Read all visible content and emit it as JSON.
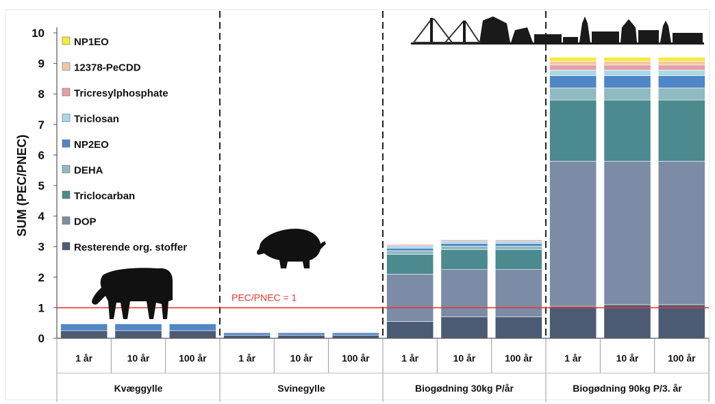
{
  "chart_data": {
    "type": "bar",
    "stacked": true,
    "ylabel": "SUM (PEC/PNEC)",
    "ylim": [
      0,
      10
    ],
    "yticks": [
      0,
      1,
      2,
      3,
      4,
      5,
      6,
      7,
      8,
      9,
      10
    ],
    "groups": [
      {
        "label": "Kvæggylle",
        "categories": [
          "1 år",
          "10 år",
          "100 år"
        ]
      },
      {
        "label": "Svinegylle",
        "categories": [
          "1 år",
          "10 år",
          "100 år"
        ]
      },
      {
        "label": "Biogødning 30kg P/år",
        "categories": [
          "1 år",
          "10 år",
          "100 år"
        ]
      },
      {
        "label": "Biogødning 90kg P/3. år",
        "categories": [
          "1 år",
          "10 år",
          "100 år"
        ]
      }
    ],
    "series": [
      {
        "name": "Resterende org. stoffer",
        "color": "#4b5b73",
        "values": [
          0.25,
          0.25,
          0.25,
          0.1,
          0.1,
          0.1,
          0.55,
          0.7,
          0.7,
          1.05,
          1.1,
          1.1
        ]
      },
      {
        "name": "DOP",
        "color": "#7d8ca6",
        "values": [
          0.0,
          0.0,
          0.0,
          0.0,
          0.0,
          0.0,
          1.55,
          1.55,
          1.55,
          4.75,
          4.7,
          4.7
        ]
      },
      {
        "name": "Triclocarban",
        "color": "#4b8a8f",
        "values": [
          0.0,
          0.0,
          0.0,
          0.0,
          0.0,
          0.0,
          0.65,
          0.65,
          0.65,
          2.0,
          2.0,
          2.0
        ]
      },
      {
        "name": "DEHA",
        "color": "#8fbac2",
        "values": [
          0.0,
          0.0,
          0.0,
          0.0,
          0.0,
          0.0,
          0.12,
          0.12,
          0.12,
          0.4,
          0.4,
          0.4
        ]
      },
      {
        "name": "NP2EO",
        "color": "#4f86c6",
        "values": [
          0.22,
          0.22,
          0.22,
          0.08,
          0.08,
          0.08,
          0.08,
          0.08,
          0.08,
          0.4,
          0.4,
          0.4
        ]
      },
      {
        "name": "Triclosan",
        "color": "#a9d8e6",
        "values": [
          0.0,
          0.0,
          0.0,
          0.0,
          0.0,
          0.0,
          0.08,
          0.08,
          0.08,
          0.18,
          0.18,
          0.18
        ]
      },
      {
        "name": "Tricresylphosphate",
        "color": "#e1a3a8",
        "values": [
          0.0,
          0.0,
          0.0,
          0.0,
          0.0,
          0.0,
          0.04,
          0.04,
          0.04,
          0.17,
          0.17,
          0.17
        ]
      },
      {
        "name": "12378-PeCDD",
        "color": "#f4c6a7",
        "values": [
          0.0,
          0.0,
          0.0,
          0.0,
          0.0,
          0.0,
          0.0,
          0.0,
          0.0,
          0.12,
          0.12,
          0.12
        ]
      },
      {
        "name": "NP1EO",
        "color": "#f2ec3c",
        "values": [
          0.0,
          0.0,
          0.0,
          0.0,
          0.0,
          0.0,
          0.0,
          0.0,
          0.0,
          0.13,
          0.13,
          0.13
        ]
      }
    ],
    "legend_order": [
      "NP1EO",
      "12378-PeCDD",
      "Tricresylphosphate",
      "Triclosan",
      "NP2EO",
      "DEHA",
      "Triclocarban",
      "DOP",
      "Resterende org. stoffer"
    ],
    "reference_line": {
      "y": 1,
      "label": "PEC/PNEC = 1",
      "color": "#e53935"
    },
    "legend_position": "top-left",
    "grid": false
  },
  "icons": [
    "cow-icon",
    "pig-icon",
    "city-skyline-icon"
  ]
}
